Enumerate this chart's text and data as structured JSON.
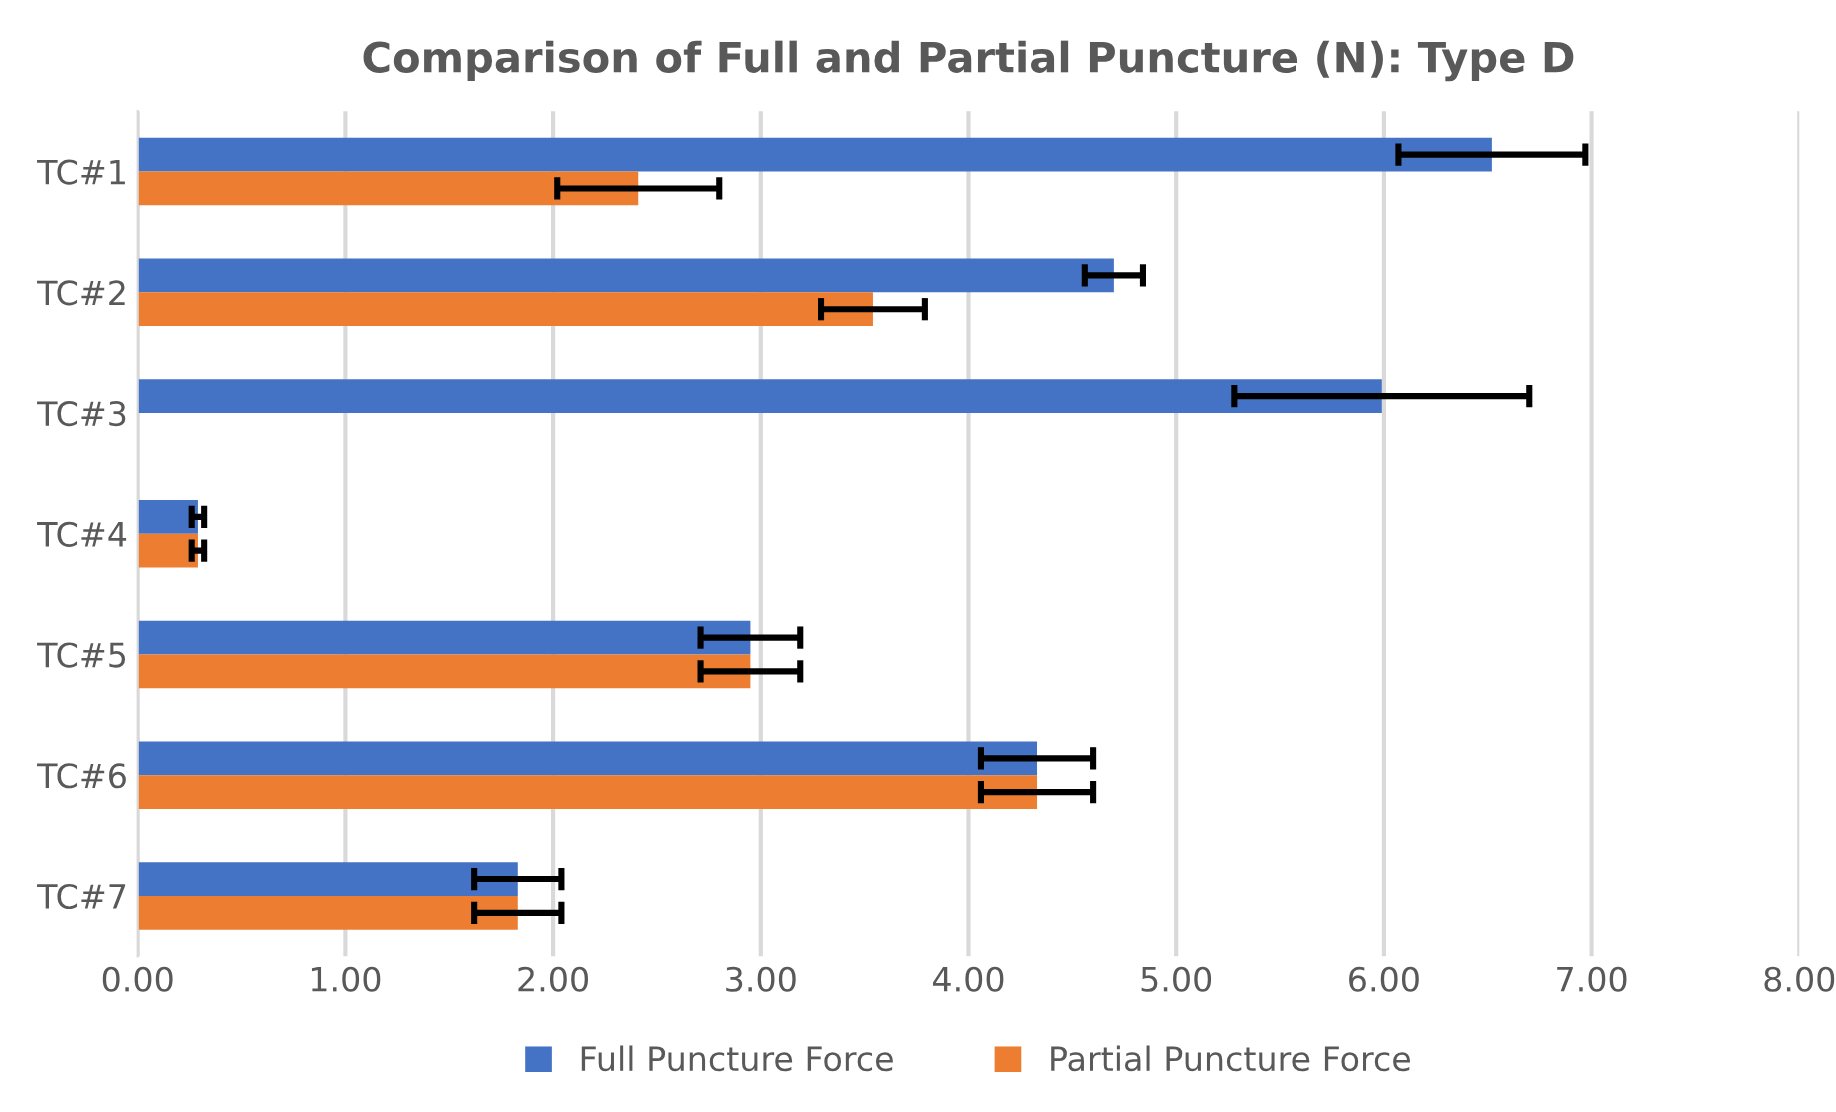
{
  "chart_data": {
    "type": "bar",
    "orientation": "horizontal",
    "title": "Comparison of Full and Partial Puncture (N): Type D",
    "categories": [
      "TC#1",
      "TC#2",
      "TC#3",
      "TC#4",
      "TC#5",
      "TC#6",
      "TC#7"
    ],
    "series": [
      {
        "name": "Full Puncture Force",
        "color": "#4472c4",
        "values": [
          6.52,
          4.7,
          5.99,
          0.29,
          2.95,
          4.33,
          1.83
        ],
        "errors": [
          0.45,
          0.14,
          0.71,
          0.03,
          0.24,
          0.27,
          0.21
        ]
      },
      {
        "name": "Partial Puncture Force",
        "color": "#ed7d31",
        "values": [
          2.41,
          3.54,
          null,
          0.29,
          2.95,
          4.33,
          1.83
        ],
        "errors": [
          0.39,
          0.25,
          null,
          0.03,
          0.24,
          0.27,
          0.21
        ]
      }
    ],
    "xlim": [
      0,
      8
    ],
    "xticks": [
      {
        "value": 0,
        "label": "0.00"
      },
      {
        "value": 1,
        "label": "1.00"
      },
      {
        "value": 2,
        "label": "2.00"
      },
      {
        "value": 3,
        "label": "3.00"
      },
      {
        "value": 4,
        "label": "4.00"
      },
      {
        "value": 5,
        "label": "5.00"
      },
      {
        "value": 6,
        "label": "6.00"
      },
      {
        "value": 7,
        "label": "7.00"
      },
      {
        "value": 8,
        "label": "8.00"
      }
    ],
    "grid": "x",
    "legend": "bottom"
  }
}
